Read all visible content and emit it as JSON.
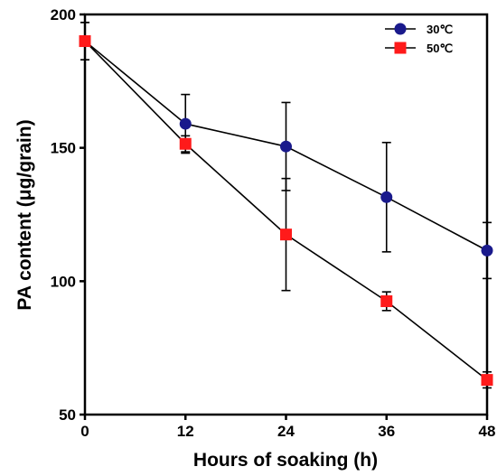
{
  "chart_data": {
    "type": "line",
    "title": "",
    "xlabel": "Hours of soaking (h)",
    "ylabel": "PA content (μg/grain)",
    "xlim": [
      0,
      48
    ],
    "ylim": [
      50,
      200
    ],
    "x_ticks": [
      0,
      12,
      24,
      36,
      48
    ],
    "x_tick_labels": [
      "0",
      "12",
      "24",
      "36",
      "48"
    ],
    "y_ticks": [
      50,
      100,
      150,
      200
    ],
    "y_tick_labels": [
      "50",
      "100",
      "150",
      "200"
    ],
    "grid": false,
    "legend_position": "top-right",
    "x": [
      0,
      12,
      24,
      36,
      48
    ],
    "series": [
      {
        "name": "30℃",
        "marker": "circle",
        "color": "#1a1a8c",
        "values": [
          190,
          159,
          150.5,
          131.5,
          111.5
        ],
        "error": [
          7,
          11,
          16.5,
          20.5,
          10.5
        ]
      },
      {
        "name": "50℃",
        "marker": "square",
        "color": "#ff1a1a",
        "values": [
          190,
          151.5,
          117.5,
          92.5,
          63
        ],
        "error": [
          7,
          3,
          21,
          3.5,
          3
        ]
      }
    ]
  }
}
